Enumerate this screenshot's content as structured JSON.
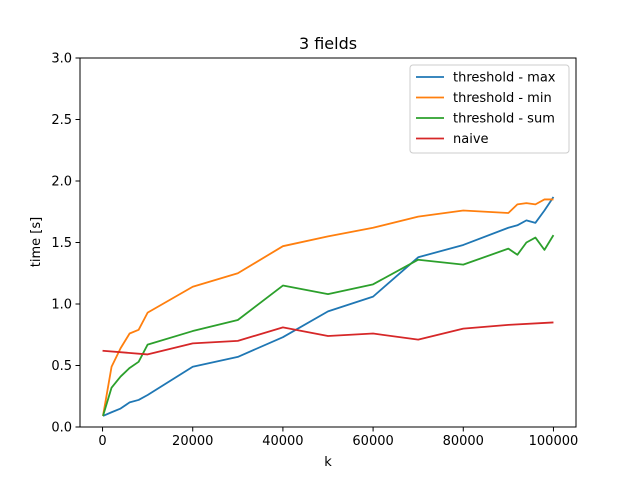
{
  "chart_data": {
    "type": "line",
    "title": "3 fields",
    "xlabel": "k",
    "ylabel": "time [s]",
    "xlim": [
      -5000,
      105000
    ],
    "ylim": [
      0,
      3.0
    ],
    "x_ticks": [
      0,
      20000,
      40000,
      60000,
      80000,
      100000
    ],
    "x_tick_labels": [
      "0",
      "20000",
      "40000",
      "60000",
      "80000",
      "100000"
    ],
    "y_ticks": [
      0,
      0.5,
      1.0,
      1.5,
      2.0,
      2.5,
      3.0
    ],
    "y_tick_labels": [
      "0.0",
      "0.5",
      "1.0",
      "1.5",
      "2.0",
      "2.5",
      "3.0"
    ],
    "grid": false,
    "legend_position": "top-right",
    "series": [
      {
        "name": "threshold - max",
        "color": "#1f77b4",
        "x": [
          100,
          2000,
          4000,
          6000,
          8000,
          10000,
          20000,
          30000,
          40000,
          50000,
          60000,
          70000,
          80000,
          90000,
          92000,
          94000,
          96000,
          98000,
          100000
        ],
        "y": [
          0.09,
          0.12,
          0.15,
          0.2,
          0.22,
          0.26,
          0.49,
          0.57,
          0.73,
          0.94,
          1.06,
          1.38,
          1.48,
          1.62,
          1.64,
          1.68,
          1.66,
          1.76,
          1.87
        ]
      },
      {
        "name": "threshold - min",
        "color": "#ff7f0e",
        "x": [
          100,
          2000,
          4000,
          6000,
          8000,
          10000,
          20000,
          30000,
          40000,
          50000,
          60000,
          70000,
          80000,
          90000,
          92000,
          94000,
          96000,
          98000,
          100000
        ],
        "y": [
          0.09,
          0.49,
          0.64,
          0.76,
          0.79,
          0.93,
          1.14,
          1.25,
          1.47,
          1.55,
          1.62,
          1.71,
          1.76,
          1.74,
          1.81,
          1.82,
          1.81,
          1.85,
          1.85
        ]
      },
      {
        "name": "threshold - sum",
        "color": "#2ca02c",
        "x": [
          100,
          2000,
          4000,
          6000,
          8000,
          10000,
          20000,
          30000,
          40000,
          50000,
          60000,
          70000,
          80000,
          90000,
          92000,
          94000,
          96000,
          98000,
          100000
        ],
        "y": [
          0.09,
          0.32,
          0.41,
          0.48,
          0.53,
          0.67,
          0.78,
          0.87,
          1.15,
          1.08,
          1.16,
          1.36,
          1.32,
          1.45,
          1.4,
          1.5,
          1.54,
          1.44,
          1.56
        ]
      },
      {
        "name": "naive",
        "color": "#d62728",
        "x": [
          0,
          10000,
          20000,
          30000,
          40000,
          50000,
          60000,
          70000,
          80000,
          90000,
          100000
        ],
        "y": [
          0.62,
          0.59,
          0.68,
          0.7,
          0.81,
          0.74,
          0.76,
          0.71,
          0.8,
          0.83,
          0.85
        ]
      }
    ]
  }
}
